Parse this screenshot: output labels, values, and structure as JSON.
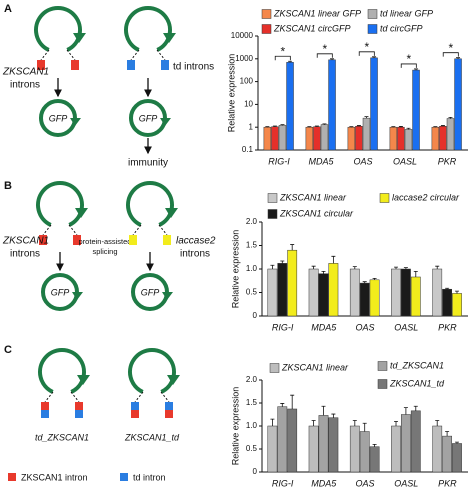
{
  "figure": {
    "panel_labels": [
      "A",
      "B",
      "C"
    ],
    "panel_a": {
      "construct_1_label": [
        "ZKSCAN1",
        "introns"
      ],
      "construct_2_label": "td introns",
      "products": [
        "GFP",
        "GFP"
      ],
      "outcome": "immunity"
    },
    "panel_b": {
      "construct_1_label": [
        "ZKSCAN1",
        "introns"
      ],
      "process_label": [
        "protein-assisted",
        "splicing"
      ],
      "construct_2_label": [
        "laccase2",
        "introns"
      ],
      "products": [
        "GFP",
        "GFP"
      ]
    },
    "panel_c": {
      "construct_labels": [
        "td_ZKSCAN1",
        "ZKSCAN1_td"
      ],
      "legend": [
        "ZKSCAN1 intron",
        "td intron"
      ]
    }
  },
  "chart_data": [
    {
      "type": "bar",
      "y_label": "Relative expression",
      "log_scale": true,
      "ylim": [
        0.1,
        10000
      ],
      "yticks": [
        0.1,
        1,
        10,
        100,
        1000,
        10000
      ],
      "categories": [
        "RIG-I",
        "MDA5",
        "OAS",
        "OASL",
        "PKR"
      ],
      "series": [
        {
          "name": "ZKSCAN1 linear GFP",
          "color": "#f4874b",
          "values": [
            1,
            1,
            1,
            1,
            1
          ],
          "errors": [
            0.06,
            0.06,
            0.06,
            0.06,
            0.06
          ]
        },
        {
          "name": "ZKSCAN1 circGFP",
          "color": "#e5302a",
          "values": [
            1.05,
            1.05,
            1.1,
            1,
            1.1
          ],
          "errors": [
            0.08,
            0.08,
            0.08,
            0.08,
            0.08
          ]
        },
        {
          "name": "td linear GFP",
          "color": "#b0b0b0",
          "values": [
            1.2,
            1.3,
            2.5,
            0.8,
            2.4
          ],
          "errors": [
            0.1,
            0.1,
            0.4,
            0.1,
            0.3
          ]
        },
        {
          "name": "td circGFP",
          "color": "#1a6ff0",
          "values": [
            700,
            900,
            1100,
            320,
            1000
          ],
          "errors": [
            80,
            100,
            120,
            40,
            120
          ]
        }
      ],
      "annotations": [
        "*",
        "*",
        "*",
        "*",
        "*"
      ]
    },
    {
      "type": "bar",
      "y_label": "Relative expression",
      "ylim": [
        0,
        2
      ],
      "yticks": [
        0,
        0.5,
        {
          "value": 1,
          "label": "1.0"
        },
        1.5,
        {
          "value": 2,
          "label": "2.0"
        }
      ],
      "categories": [
        "RIG-I",
        "MDA5",
        "OAS",
        "OASL",
        "PKR"
      ],
      "series": [
        {
          "name": "ZKSCAN1 linear",
          "color": "#c8c8c8",
          "values": [
            1,
            1,
            1,
            1,
            1
          ],
          "errors": [
            0.08,
            0.06,
            0.05,
            0.04,
            0.06
          ]
        },
        {
          "name": "ZKSCAN1 circular",
          "color": "#1a1a1a",
          "values": [
            1.12,
            0.9,
            0.7,
            1,
            0.57
          ],
          "errors": [
            0.05,
            0.05,
            0.03,
            0.03,
            0.02
          ]
        },
        {
          "name": "laccase2 circular",
          "color": "#f2ec1c",
          "values": [
            1.4,
            1.12,
            0.77,
            0.83,
            0.48
          ],
          "errors": [
            0.12,
            0.15,
            0.03,
            0.12,
            0.05
          ]
        }
      ]
    },
    {
      "type": "bar",
      "y_label": "Relative expression",
      "ylim": [
        0,
        2
      ],
      "yticks": [
        0,
        0.5,
        {
          "value": 1,
          "label": "1.0"
        },
        1.5,
        {
          "value": 2,
          "label": "2.0"
        }
      ],
      "categories": [
        "RIG-I",
        "MDA5",
        "OAS",
        "OASL",
        "PKR"
      ],
      "series": [
        {
          "name": "ZKSCAN1 linear",
          "color": "#bdbdbd",
          "values": [
            1,
            1,
            1,
            1,
            1
          ],
          "errors": [
            0.15,
            0.12,
            0.12,
            0.1,
            0.12
          ]
        },
        {
          "name": "td_ZKSCAN1",
          "color": "#a3a3a3",
          "values": [
            1.42,
            1.23,
            0.88,
            1.25,
            0.78
          ],
          "errors": [
            0.07,
            0.2,
            0.18,
            0.15,
            0.1
          ]
        },
        {
          "name": "ZKSCAN1_td",
          "color": "#777777",
          "values": [
            1.37,
            1.18,
            0.55,
            1.33,
            0.62
          ],
          "errors": [
            0.3,
            0.08,
            0.05,
            0.1,
            0.03
          ]
        }
      ]
    }
  ]
}
